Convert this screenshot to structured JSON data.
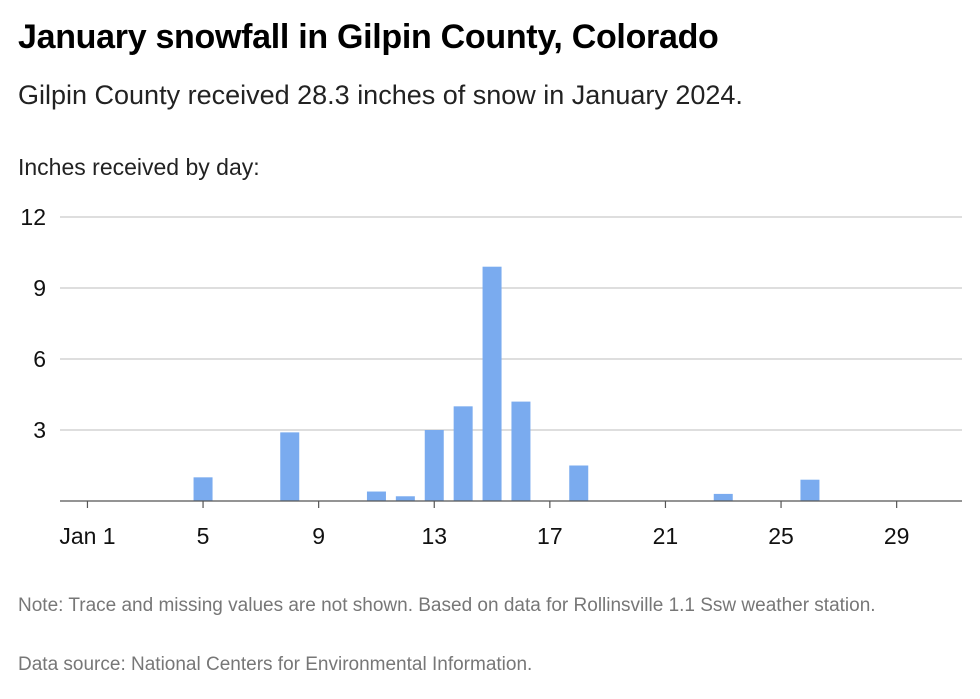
{
  "header": {
    "title": "January snowfall in Gilpin County, Colorado",
    "subtitle": "Gilpin County received 28.3 inches of snow in January 2024."
  },
  "footer": {
    "note": "Note: Trace and missing values are not shown. Based on data for Rollinsville 1.1 Ssw weather station.",
    "source": "Data source: National Centers for Environmental Information."
  },
  "colors": {
    "bar": "#7aabef",
    "grid": "#bdbdbd",
    "axis": "#555555"
  },
  "chart_data": {
    "type": "bar",
    "title": "January snowfall in Gilpin County, Colorado",
    "subtitle": "Gilpin County received 28.3 inches of snow in January 2024.",
    "ylabel": "Inches received by day:",
    "xlabel": "",
    "ylim": [
      0,
      12
    ],
    "yticks": [
      3,
      6,
      9,
      12
    ],
    "xlim": [
      1,
      31
    ],
    "xticks": [
      {
        "day": 1,
        "label": "Jan 1"
      },
      {
        "day": 5,
        "label": "5"
      },
      {
        "day": 9,
        "label": "9"
      },
      {
        "day": 13,
        "label": "13"
      },
      {
        "day": 17,
        "label": "17"
      },
      {
        "day": 21,
        "label": "21"
      },
      {
        "day": 25,
        "label": "25"
      },
      {
        "day": 29,
        "label": "29"
      }
    ],
    "grid": true,
    "legend": "none",
    "series": [
      {
        "points": [
          {
            "day": 5,
            "value": 1.0
          },
          {
            "day": 8,
            "value": 2.9
          },
          {
            "day": 11,
            "value": 0.4
          },
          {
            "day": 12,
            "value": 0.2
          },
          {
            "day": 13,
            "value": 3.0
          },
          {
            "day": 14,
            "value": 4.0
          },
          {
            "day": 15,
            "value": 9.9
          },
          {
            "day": 16,
            "value": 4.2
          },
          {
            "day": 18,
            "value": 1.5
          },
          {
            "day": 23,
            "value": 0.3
          },
          {
            "day": 26,
            "value": 0.9
          }
        ]
      }
    ]
  }
}
